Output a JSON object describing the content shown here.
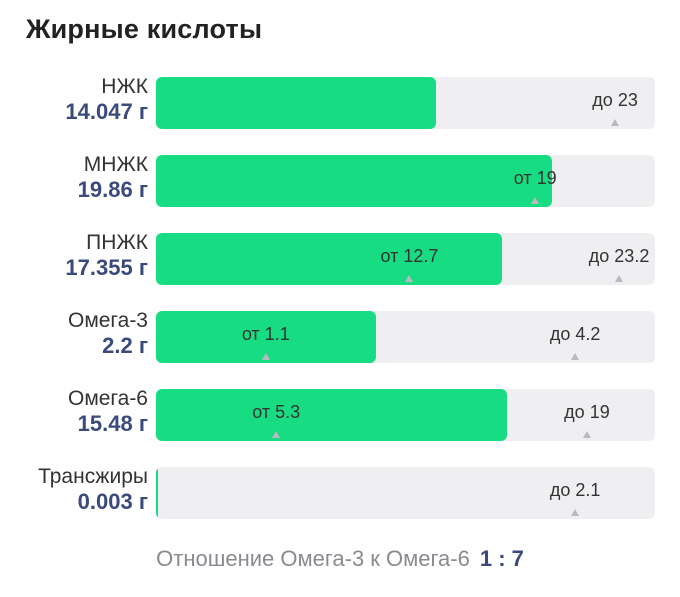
{
  "title": "Жирные кислоты",
  "scale_max": 25,
  "rows": [
    {
      "name": "НЖК",
      "value": "14.047 г",
      "fill": 14.047,
      "markers": [
        {
          "label": "до 23",
          "at": 23
        }
      ]
    },
    {
      "name": "МНЖК",
      "value": "19.86 г",
      "fill": 19.86,
      "markers": [
        {
          "label": "от 19",
          "at": 19
        }
      ]
    },
    {
      "name": "ПНЖК",
      "value": "17.355 г",
      "fill": 17.355,
      "markers": [
        {
          "label": "от 12.7",
          "at": 12.7
        },
        {
          "label": "до 23.2",
          "at": 23.2
        }
      ]
    },
    {
      "name": "Омега-3",
      "value": "2.2 г",
      "fill": 2.2,
      "scale_max": 5,
      "markers": [
        {
          "label": "от 1.1",
          "at": 1.1
        },
        {
          "label": "до 4.2",
          "at": 4.2
        }
      ]
    },
    {
      "name": "Омега-6",
      "value": "15.48 г",
      "fill": 15.48,
      "scale_max": 22,
      "markers": [
        {
          "label": "от 5.3",
          "at": 5.3
        },
        {
          "label": "до 19",
          "at": 19
        }
      ]
    },
    {
      "name": "Трансжиры",
      "value": "0.003 г",
      "fill": 0.003,
      "scale_max": 2.5,
      "markers": [
        {
          "label": "до 2.1",
          "at": 2.1
        }
      ]
    }
  ],
  "ratio": {
    "label": "Отношение Омега-3 к Омега-6",
    "value": "1 : 7"
  },
  "colors": {
    "fill": "#18dc82",
    "track": "#efeff2",
    "value": "#3a4a7c"
  }
}
